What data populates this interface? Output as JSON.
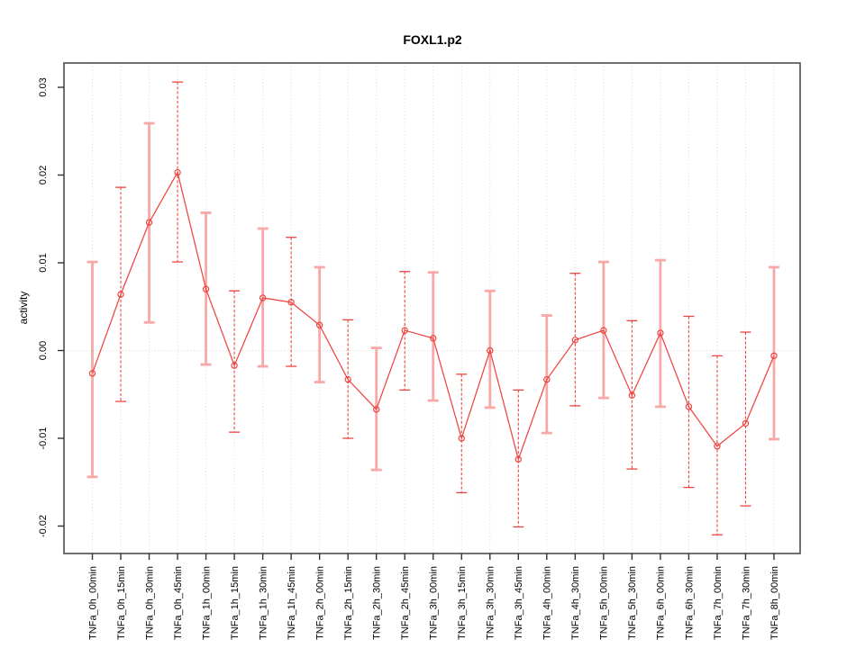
{
  "title": "FOXL1.p2",
  "chart_data": {
    "type": "line",
    "title": "FOXL1.p2",
    "xlabel": "",
    "ylabel": "activity",
    "legend": "none",
    "grid": "dotted vertical gridline at each category; dotted horizontal line at y=0",
    "ylim": [
      -0.022,
      0.031
    ],
    "yticks": [
      0.03,
      0.02,
      0.01,
      0.0,
      -0.01,
      -0.02
    ],
    "ytick_labels": [
      "0.03",
      "0.02",
      "0.01",
      "0.00",
      "-0.01",
      "-0.02"
    ],
    "categories": [
      "TNFa_0h_00min",
      "TNFa_0h_15min",
      "TNFa_0h_30min",
      "TNFa_0h_45min",
      "TNFa_1h_00min",
      "TNFa_1h_15min",
      "TNFa_1h_30min",
      "TNFa_1h_45min",
      "TNFa_2h_00min",
      "TNFa_2h_15min",
      "TNFa_2h_30min",
      "TNFa_2h_45min",
      "TNFa_3h_00min",
      "TNFa_3h_15min",
      "TNFa_3h_30min",
      "TNFa_3h_45min",
      "TNFa_4h_00min",
      "TNFa_4h_30min",
      "TNFa_5h_00min",
      "TNFa_5h_30min",
      "TNFa_6h_00min",
      "TNFa_6h_30min",
      "TNFa_7h_00min",
      "TNFa_7h_30min",
      "TNFa_8h_00min"
    ],
    "series": [
      {
        "name": "activity",
        "values": [
          -0.0026,
          0.0064,
          0.0146,
          0.0203,
          0.007,
          -0.0017,
          0.006,
          0.0055,
          0.0029,
          -0.0033,
          -0.0067,
          0.0023,
          0.0014,
          -0.01,
          0.0,
          -0.0124,
          -0.0033,
          0.0012,
          0.0023,
          -0.0051,
          0.002,
          -0.0064,
          -0.0109,
          -0.0083,
          -0.0006
        ],
        "error_low": [
          -0.0144,
          -0.0058,
          0.0032,
          0.0101,
          -0.0016,
          -0.0093,
          -0.0018,
          -0.0018,
          -0.0036,
          -0.01,
          -0.0136,
          -0.0045,
          -0.0057,
          -0.0162,
          -0.0065,
          -0.0201,
          -0.0094,
          -0.0063,
          -0.0054,
          -0.0135,
          -0.0064,
          -0.0156,
          -0.021,
          -0.0177,
          -0.0101
        ],
        "error_high": [
          0.0101,
          0.0186,
          0.0259,
          0.0306,
          0.0157,
          0.0068,
          0.0139,
          0.0129,
          0.0095,
          0.0035,
          0.0003,
          0.009,
          0.0089,
          -0.0027,
          0.0068,
          -0.0045,
          0.004,
          0.0088,
          0.0101,
          0.0034,
          0.0103,
          0.0039,
          -0.0006,
          0.0021,
          0.0095
        ],
        "error_bar_styles": [
          "solid",
          "dashed",
          "solid",
          "dashed",
          "solid",
          "dashed",
          "solid",
          "dashed",
          "solid",
          "dashed",
          "solid",
          "dashed",
          "solid",
          "dashed",
          "solid",
          "dashed",
          "solid",
          "dashed",
          "solid",
          "dashed",
          "solid",
          "dashed",
          "dashed",
          "dashed",
          "solid"
        ]
      }
    ],
    "colors": {
      "line": "#ee4540",
      "marker": "#ee4540",
      "dashed_bar": "#ee4540",
      "solid_bar": "#f8a8a6",
      "gridline": "#d6d6d6",
      "zero_line": "#d9d9d9",
      "frame": "#4d4d4d",
      "tick": "#333333",
      "text": "#000000"
    }
  }
}
